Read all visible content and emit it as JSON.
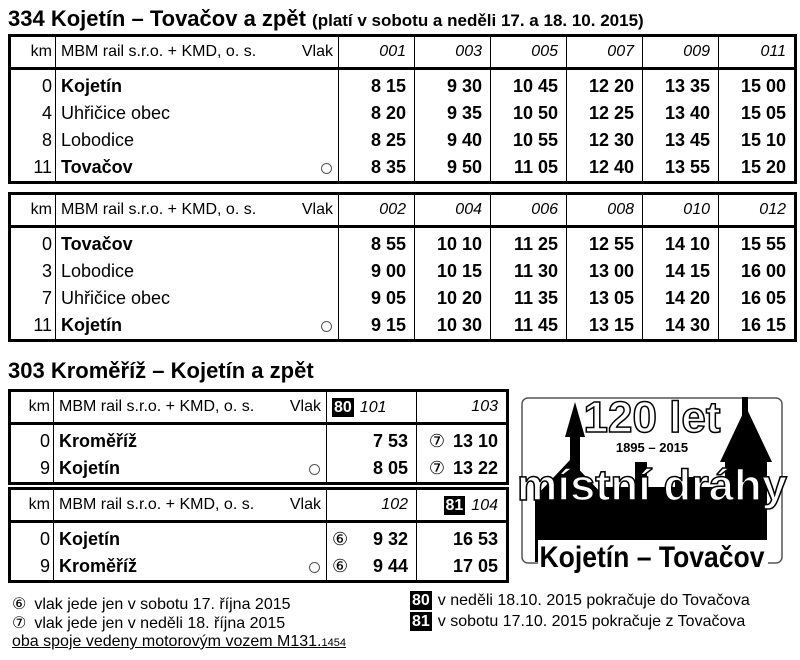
{
  "t1": {
    "title": "334  Kojetín – Tovačov a zpět",
    "subtitle": "(platí v sobotu a neděli 17. a 18. 10. 2015)"
  },
  "hdr": {
    "km": "km",
    "operator": "MBM rail s.r.o. + KMD, o. s.",
    "vlak": "Vlak"
  },
  "tab1": {
    "trains": [
      "001",
      "003",
      "005",
      "007",
      "009",
      "011"
    ],
    "rows": [
      {
        "km": "0",
        "station": "Kojetín",
        "bold": true,
        "times": [
          "8 15",
          "9 30",
          "10 45",
          "12 20",
          "13 35",
          "15 00"
        ]
      },
      {
        "km": "4",
        "station": "Uhřičice obec",
        "bold": false,
        "times": [
          "8 20",
          "9 35",
          "10 50",
          "12 25",
          "13 40",
          "15 05"
        ]
      },
      {
        "km": "8",
        "station": "Lobodice",
        "bold": false,
        "times": [
          "8 25",
          "9 40",
          "10 55",
          "12 30",
          "13 45",
          "15 10"
        ]
      },
      {
        "km": "11",
        "station": "Tovačov",
        "bold": true,
        "times": [
          "8 35",
          "9 50",
          "11 05",
          "12 40",
          "13 55",
          "15 20"
        ]
      }
    ]
  },
  "tab2": {
    "trains": [
      "002",
      "004",
      "006",
      "008",
      "010",
      "012"
    ],
    "rows": [
      {
        "km": "0",
        "station": "Tovačov",
        "bold": true,
        "times": [
          "8 55",
          "10 10",
          "11 25",
          "12 55",
          "14 10",
          "15 55"
        ]
      },
      {
        "km": "3",
        "station": "Lobodice",
        "bold": false,
        "times": [
          "9 00",
          "10 15",
          "11 30",
          "13 00",
          "14 15",
          "16 00"
        ]
      },
      {
        "km": "7",
        "station": "Uhřičice obec",
        "bold": false,
        "times": [
          "9 05",
          "10 20",
          "11 35",
          "13 05",
          "14 20",
          "16 05"
        ]
      },
      {
        "km": "11",
        "station": "Kojetín",
        "bold": true,
        "times": [
          "9 15",
          "10 30",
          "11 45",
          "13 15",
          "14 30",
          "16 15"
        ]
      }
    ]
  },
  "t2": {
    "title": "303  Kroměříž – Kojetín a zpět"
  },
  "hdr2": {
    "operator": "MBM rail s.r.o. + KMD, o. s."
  },
  "tab3": {
    "trains": [
      {
        "no": "101",
        "badge": "80"
      },
      {
        "no": "103",
        "badge": ""
      }
    ],
    "rows": [
      {
        "km": "0",
        "station": "Kroměříž",
        "times": [
          {
            "mark": "",
            "time": "7 53"
          },
          {
            "mark": "⑦",
            "time": "13 10"
          }
        ]
      },
      {
        "km": "9",
        "station": "Kojetín",
        "times": [
          {
            "mark": "",
            "time": "8 05"
          },
          {
            "mark": "⑦",
            "time": "13 22"
          }
        ]
      }
    ]
  },
  "tab4": {
    "trains": [
      {
        "no": "102",
        "badge": ""
      },
      {
        "no": "104",
        "badge": "81"
      }
    ],
    "rows": [
      {
        "km": "0",
        "station": "Kojetín",
        "times": [
          {
            "mark": "⑥",
            "time": "9 32"
          },
          {
            "mark": "",
            "time": "16 53"
          }
        ]
      },
      {
        "km": "9",
        "station": "Kroměříž",
        "times": [
          {
            "mark": "⑥",
            "time": "9 44"
          },
          {
            "mark": "",
            "time": "17 05"
          }
        ]
      }
    ]
  },
  "notes": {
    "n6_mark": "⑥",
    "n6": "vlak jede jen v sobotu 17. října 2015",
    "n7_mark": "⑦",
    "n7": "vlak jede jen v neděli 18. října 2015",
    "m131": "oba spoje vedeny motorovým vozem M131.",
    "m131_small": "1454",
    "b80": "80",
    "b80_text": "v neděli 18.10. 2015 pokračuje do Tovačova",
    "b81": "81",
    "b81_text": "v sobotu 17.10. 2015 pokračuje z Tovačova"
  },
  "logo": {
    "line1": "120 let",
    "years": "1895 – 2015",
    "line2": "místní dráhy",
    "line3": "Kojetín – Tovačov"
  }
}
